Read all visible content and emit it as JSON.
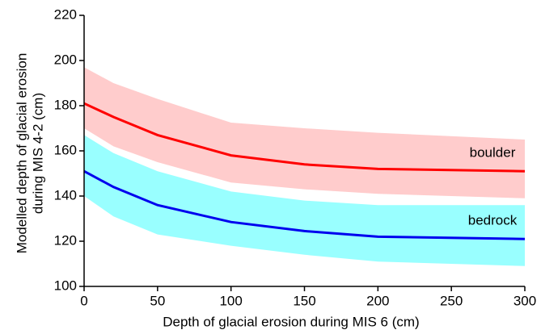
{
  "chart_data": {
    "type": "line",
    "x_label": "Depth of glacial erosion during MIS 6 (cm)",
    "y_label": [
      "Modelled depth of glacial erosion",
      "during MIS 4-2 (cm)"
    ],
    "x": [
      0,
      20,
      50,
      100,
      150,
      200,
      300
    ],
    "series": [
      {
        "name": "boulder",
        "color": "#ff0000",
        "band_color": "#ffcccc",
        "values": [
          181,
          175,
          167,
          158,
          154,
          152,
          151
        ],
        "upper": [
          197,
          190,
          183,
          172.5,
          170,
          168,
          165
        ],
        "lower": [
          170,
          162,
          155,
          146,
          143,
          141,
          139
        ]
      },
      {
        "name": "bedrock",
        "color": "#0000ee",
        "band_color": "#99ffff",
        "values": [
          151,
          144,
          136,
          128.5,
          124.5,
          122,
          121
        ],
        "upper": [
          167,
          159,
          151,
          142,
          138,
          136,
          136
        ],
        "lower": [
          140,
          131,
          123,
          118,
          114,
          111,
          109
        ]
      }
    ],
    "xlim": [
      0,
      300
    ],
    "xticks": [
      0,
      50,
      100,
      150,
      200,
      250,
      300
    ],
    "ylim": [
      100,
      220
    ],
    "yticks": [
      100,
      120,
      140,
      160,
      180,
      200,
      220
    ],
    "grid": false
  }
}
